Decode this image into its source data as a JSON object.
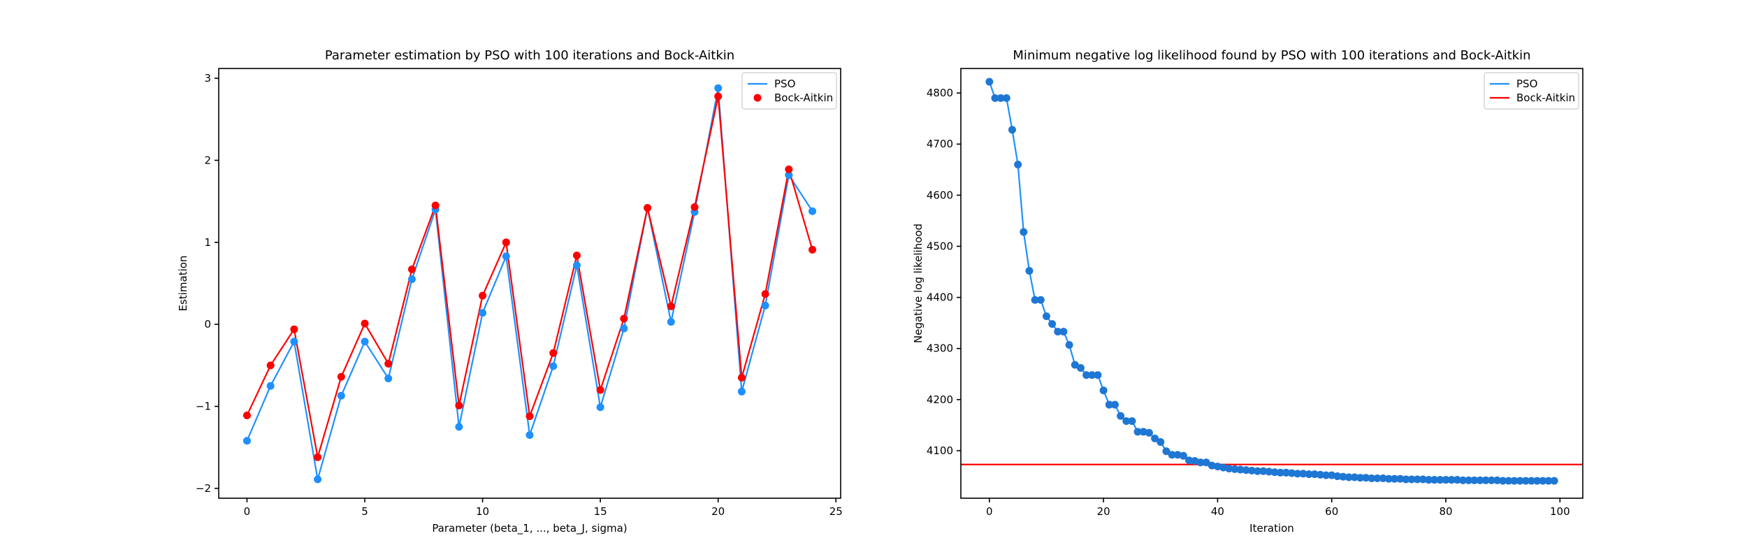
{
  "chart_data": [
    {
      "type": "line",
      "title": "Parameter estimation by PSO with 100 iterations and Bock-Aitkin",
      "xlabel": "Parameter (beta_1, ..., beta_J, sigma)",
      "ylabel": "Estimation",
      "xlim": [
        -1.2,
        25.2
      ],
      "ylim": [
        -2.12,
        3.12
      ],
      "xticks": [
        0,
        5,
        10,
        15,
        20,
        25
      ],
      "xtick_labels": [
        "0",
        "5",
        "10",
        "15",
        "20",
        "25"
      ],
      "yticks": [
        -2,
        -1,
        0,
        1,
        2,
        3
      ],
      "ytick_labels": [
        "−2",
        "−1",
        "0",
        "1",
        "2",
        "3"
      ],
      "grid": false,
      "legend": "top-right",
      "x": [
        0,
        1,
        2,
        3,
        4,
        5,
        6,
        7,
        8,
        9,
        10,
        11,
        12,
        13,
        14,
        15,
        16,
        17,
        18,
        19,
        20,
        21,
        22,
        23,
        24
      ],
      "series": [
        {
          "name": "PSO",
          "kind": "line-marker",
          "color": "#1e90ff",
          "values": [
            -1.42,
            -0.75,
            -0.21,
            -1.89,
            -0.87,
            -0.21,
            -0.66,
            0.55,
            1.4,
            -1.25,
            0.14,
            0.83,
            -1.35,
            -0.51,
            0.72,
            -1.01,
            -0.05,
            1.42,
            0.03,
            1.37,
            2.88,
            -0.82,
            0.23,
            1.82,
            1.38
          ]
        },
        {
          "name": "Bock-Aitkin",
          "kind": "line-marker",
          "color": "#ff0000",
          "values": [
            -1.11,
            -0.5,
            -0.06,
            -1.62,
            -0.64,
            0.01,
            -0.48,
            0.67,
            1.45,
            -0.99,
            0.35,
            1.0,
            -1.12,
            -0.35,
            0.84,
            -0.8,
            0.07,
            1.42,
            0.22,
            1.43,
            2.78,
            -0.65,
            0.37,
            1.89,
            0.91
          ]
        }
      ]
    },
    {
      "type": "line",
      "title": "Minimum negative log likelihood found by PSO with 100 iterations and Bock-Aitkin",
      "xlabel": "Iteration",
      "ylabel": "Negative log likelihood",
      "xlim": [
        -5,
        104
      ],
      "ylim": [
        4007,
        4848
      ],
      "xticks": [
        0,
        20,
        40,
        60,
        80,
        100
      ],
      "xtick_labels": [
        "0",
        "20",
        "40",
        "60",
        "80",
        "100"
      ],
      "yticks": [
        4100,
        4200,
        4300,
        4400,
        4500,
        4600,
        4700,
        4800
      ],
      "ytick_labels": [
        "4100",
        "4200",
        "4300",
        "4400",
        "4500",
        "4600",
        "4700",
        "4800"
      ],
      "grid": false,
      "legend": "top-right",
      "x": [
        0,
        1,
        2,
        3,
        4,
        5,
        6,
        7,
        8,
        9,
        10,
        11,
        12,
        13,
        14,
        15,
        16,
        17,
        18,
        19,
        20,
        21,
        22,
        23,
        24,
        25,
        26,
        27,
        28,
        29,
        30,
        31,
        32,
        33,
        34,
        35,
        36,
        37,
        38,
        39,
        40,
        41,
        42,
        43,
        44,
        45,
        46,
        47,
        48,
        49,
        50,
        51,
        52,
        53,
        54,
        55,
        56,
        57,
        58,
        59,
        60,
        61,
        62,
        63,
        64,
        65,
        66,
        67,
        68,
        69,
        70,
        71,
        72,
        73,
        74,
        75,
        76,
        77,
        78,
        79,
        80,
        81,
        82,
        83,
        84,
        85,
        86,
        87,
        88,
        89,
        90,
        91,
        92,
        93,
        94,
        95,
        96,
        97,
        98,
        99
      ],
      "series": [
        {
          "name": "PSO",
          "kind": "line-marker",
          "color": "#1e90ff",
          "values": [
            4822,
            4790,
            4790,
            4790,
            4728,
            4660,
            4528,
            4452,
            4395,
            4395,
            4363,
            4348,
            4333,
            4333,
            4307,
            4268,
            4262,
            4248,
            4248,
            4248,
            4218,
            4190,
            4190,
            4168,
            4158,
            4158,
            4137,
            4137,
            4135,
            4124,
            4117,
            4099,
            4092,
            4092,
            4090,
            4081,
            4080,
            4077,
            4077,
            4071,
            4069,
            4067,
            4065,
            4064,
            4063,
            4062,
            4061,
            4060,
            4060,
            4059,
            4058,
            4057,
            4057,
            4056,
            4055,
            4055,
            4054,
            4054,
            4053,
            4052,
            4052,
            4050,
            4049,
            4048,
            4048,
            4047,
            4047,
            4046,
            4046,
            4046,
            4045,
            4045,
            4045,
            4044,
            4044,
            4044,
            4044,
            4043,
            4043,
            4043,
            4043,
            4043,
            4043,
            4042,
            4042,
            4042,
            4042,
            4042,
            4042,
            4042,
            4041,
            4041,
            4041,
            4041,
            4041,
            4041,
            4041,
            4041,
            4041,
            4041
          ]
        },
        {
          "name": "Bock-Aitkin",
          "kind": "hline",
          "color": "#ff0000",
          "y": 4073
        }
      ]
    }
  ]
}
